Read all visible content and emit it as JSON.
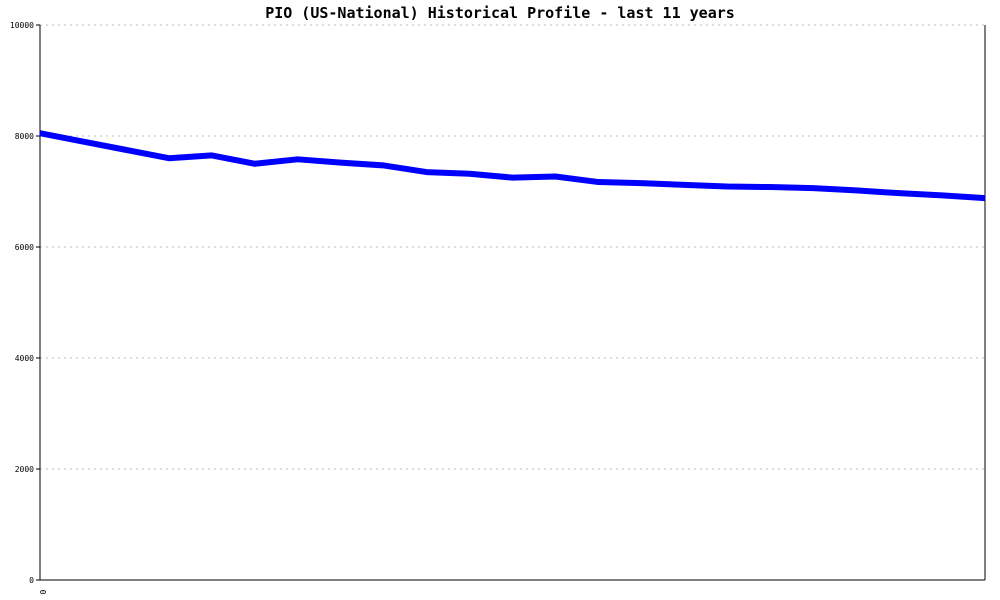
{
  "chart_data": {
    "type": "line",
    "title": "PIO (US-National) Historical Profile - last 11 years",
    "xlabel": "",
    "ylabel": "",
    "x_tick_labels": [
      "0"
    ],
    "y_ticks": [
      0,
      2000,
      4000,
      6000,
      8000,
      10000
    ],
    "y_tick_labels": [
      "0",
      "2000",
      "4000",
      "6000",
      "8000",
      "10000"
    ],
    "ylim": [
      0,
      10000
    ],
    "xlim": [
      0,
      22
    ],
    "grid": true,
    "series": [
      {
        "color": "#0000ff",
        "x": [
          0,
          1,
          2,
          3,
          4,
          5,
          6,
          7,
          8,
          9,
          10,
          11,
          12,
          13,
          14,
          15,
          16,
          17,
          18,
          19,
          20,
          21,
          22
        ],
        "values": [
          8050,
          7900,
          7750,
          7600,
          7650,
          7500,
          7580,
          7520,
          7470,
          7350,
          7320,
          7250,
          7270,
          7170,
          7150,
          7120,
          7090,
          7080,
          7060,
          7020,
          6970,
          6930,
          6880
        ]
      }
    ]
  }
}
